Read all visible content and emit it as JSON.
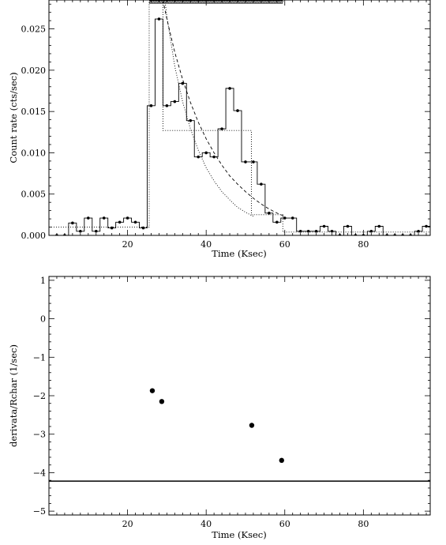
{
  "chart_data": [
    {
      "type": "line",
      "xlabel": "Time (Ksec)",
      "ylabel": "Count rate (cts/sec)",
      "xlim": [
        0,
        97
      ],
      "ylim": [
        0,
        0.0285
      ],
      "xticks": [
        20,
        40,
        60,
        80
      ],
      "xtick_labels": [
        "20",
        "40",
        "60",
        "80"
      ],
      "yticks": [
        0.0,
        0.005,
        0.01,
        0.015,
        0.02,
        0.025
      ],
      "ytick_labels": [
        "0.000",
        "0.005",
        "0.010",
        "0.015",
        "0.020",
        "0.025"
      ],
      "series": [
        {
          "style": "histogram-step-with-points",
          "bin_width": 2,
          "x": [
            2,
            4,
            6,
            8,
            10,
            12,
            14,
            16,
            18,
            20,
            22,
            24,
            26,
            28,
            30,
            32,
            34,
            36,
            38,
            40,
            42,
            44,
            46,
            48,
            50,
            52,
            54,
            56,
            58,
            60,
            62,
            64,
            66,
            68,
            70,
            72,
            74,
            76,
            78,
            80,
            82,
            84,
            86,
            88,
            90,
            92,
            94,
            96
          ],
          "y": [
            0.0,
            0.0,
            0.0015,
            0.0005,
            0.0021,
            0.0005,
            0.0021,
            0.0009,
            0.0016,
            0.0021,
            0.0016,
            0.0009,
            0.0157,
            0.0262,
            0.0157,
            0.0162,
            0.0184,
            0.0139,
            0.0095,
            0.01,
            0.0095,
            0.0129,
            0.0178,
            0.0151,
            0.0089,
            0.0089,
            0.0062,
            0.0027,
            0.0016,
            0.0021,
            0.0021,
            0.0005,
            0.0005,
            0.0005,
            0.0011,
            0.0005,
            0.0,
            0.0011,
            0.0,
            0.0,
            0.0005,
            0.0011,
            0.0,
            0.0,
            0.0,
            0.0,
            0.0005,
            0.0011
          ]
        },
        {
          "style": "dotted-blocks",
          "steps": [
            {
              "x0": 0,
              "x1": 25.5,
              "y": 0.001
            },
            {
              "x0": 25.5,
              "x1": 29,
              "y": 0.0285
            },
            {
              "x0": 29,
              "x1": 51.5,
              "y": 0.0127
            },
            {
              "x0": 51.5,
              "x1": 59.5,
              "y": 0.0025
            },
            {
              "x0": 59.5,
              "x1": 97,
              "y": 0.0004
            }
          ]
        },
        {
          "style": "dashed-decay",
          "x": [
            29,
            30,
            32,
            34,
            36,
            38,
            40,
            42,
            44,
            46,
            48,
            50,
            52,
            54,
            56,
            58,
            60
          ],
          "y": [
            0.0285,
            0.0262,
            0.0222,
            0.0189,
            0.0161,
            0.0137,
            0.0117,
            0.01,
            0.0085,
            0.0072,
            0.0062,
            0.0053,
            0.0045,
            0.0038,
            0.0032,
            0.0027,
            0.0023
          ]
        },
        {
          "style": "dotted-decay",
          "x": [
            29.5,
            30,
            32,
            34,
            36,
            38,
            40,
            42,
            44,
            46,
            48,
            50,
            52
          ],
          "y": [
            0.0285,
            0.0265,
            0.0205,
            0.0162,
            0.0129,
            0.0103,
            0.0082,
            0.0066,
            0.0053,
            0.0043,
            0.0034,
            0.0028,
            0.0023
          ]
        },
        {
          "style": "top-hatched-band",
          "x0": 25.5,
          "x1": 59.5,
          "y": 0.0285
        }
      ]
    },
    {
      "type": "scatter",
      "xlabel": "Time (Ksec)",
      "ylabel": "derivata/Rchar (1/sec)",
      "xlim": [
        0,
        97
      ],
      "ylim": [
        -5.1,
        1.1
      ],
      "xticks": [
        20,
        40,
        60,
        80
      ],
      "xtick_labels": [
        "20",
        "40",
        "60",
        "80"
      ],
      "yticks": [
        -5,
        -4,
        -3,
        -2,
        -1,
        0,
        1
      ],
      "ytick_labels": [
        "−5",
        "−4",
        "−3",
        "−2",
        "−1",
        "0",
        "1"
      ],
      "series": [
        {
          "x": [
            26.3,
            28.7,
            51.6,
            59.2
          ],
          "y": [
            -1.87,
            -2.15,
            -2.77,
            -3.68
          ]
        }
      ],
      "threshold": -4.22
    }
  ]
}
